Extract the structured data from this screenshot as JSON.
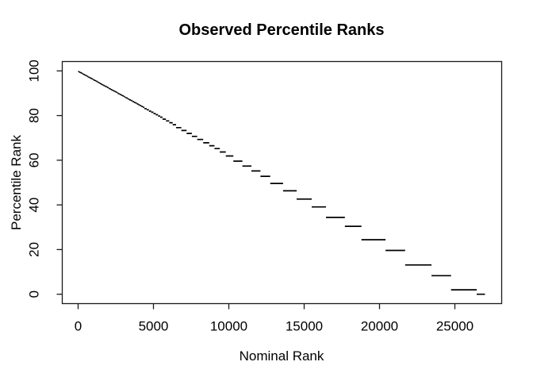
{
  "figure": {
    "title": "Observed Percentile Ranks",
    "xlabel": "Nominal Rank",
    "ylabel": "Percentile Rank"
  },
  "colors": {
    "line": "#000000",
    "box": "#1a1a1a",
    "text": "#000000",
    "background": "#ffffff"
  },
  "chart_data": {
    "type": "step",
    "title": "Observed Percentile Ranks",
    "xlabel": "Nominal Rank",
    "ylabel": "Percentile Rank",
    "x_ticks": [
      0,
      5000,
      10000,
      15000,
      20000,
      25000
    ],
    "y_ticks": [
      0,
      20,
      40,
      60,
      80,
      100
    ],
    "xlim": [
      -1052,
      28106
    ],
    "ylim": [
      -4.2,
      104.2
    ],
    "grid": false,
    "legend": null,
    "n_items": 27000,
    "segments": [
      [
        0,
        75,
        99.7
      ],
      [
        75,
        150,
        99.4
      ],
      [
        150,
        225,
        99.2
      ],
      [
        225,
        300,
        98.9
      ],
      [
        300,
        375,
        98.6
      ],
      [
        375,
        450,
        98.3
      ],
      [
        450,
        525,
        98.1
      ],
      [
        525,
        600,
        97.8
      ],
      [
        600,
        675,
        97.5
      ],
      [
        675,
        750,
        97.2
      ],
      [
        750,
        825,
        96.9
      ],
      [
        825,
        900,
        96.7
      ],
      [
        900,
        975,
        96.4
      ],
      [
        975,
        1050,
        96.1
      ],
      [
        1050,
        1125,
        95.8
      ],
      [
        1125,
        1200,
        95.6
      ],
      [
        1200,
        1275,
        95.3
      ],
      [
        1275,
        1350,
        95.0
      ],
      [
        1350,
        1425,
        94.7
      ],
      [
        1425,
        1500,
        94.4
      ],
      [
        1500,
        1585,
        94.1
      ],
      [
        1585,
        1670,
        93.8
      ],
      [
        1670,
        1755,
        93.5
      ],
      [
        1755,
        1840,
        93.2
      ],
      [
        1840,
        1925,
        92.9
      ],
      [
        1925,
        2010,
        92.6
      ],
      [
        2010,
        2095,
        92.2
      ],
      [
        2095,
        2180,
        91.9
      ],
      [
        2180,
        2265,
        91.6
      ],
      [
        2265,
        2350,
        91.3
      ],
      [
        2350,
        2435,
        91.0
      ],
      [
        2435,
        2520,
        90.7
      ],
      [
        2520,
        2605,
        90.4
      ],
      [
        2605,
        2690,
        90.0
      ],
      [
        2690,
        2775,
        89.7
      ],
      [
        2775,
        2860,
        89.4
      ],
      [
        2860,
        2945,
        89.1
      ],
      [
        2945,
        3030,
        88.8
      ],
      [
        3030,
        3115,
        88.5
      ],
      [
        3115,
        3200,
        88.1
      ],
      [
        3200,
        3300,
        87.8
      ],
      [
        3300,
        3400,
        87.4
      ],
      [
        3400,
        3500,
        87.0
      ],
      [
        3500,
        3600,
        86.7
      ],
      [
        3600,
        3700,
        86.3
      ],
      [
        3700,
        3800,
        85.9
      ],
      [
        3800,
        3900,
        85.6
      ],
      [
        3900,
        4000,
        85.2
      ],
      [
        4000,
        4100,
        84.8
      ],
      [
        4100,
        4200,
        84.4
      ],
      [
        4200,
        4300,
        84.1
      ],
      [
        4300,
        4400,
        83.7
      ],
      [
        4400,
        4550,
        83.1
      ],
      [
        4550,
        4700,
        82.6
      ],
      [
        4700,
        4850,
        82.0
      ],
      [
        4850,
        5000,
        81.5
      ],
      [
        5000,
        5150,
        80.9
      ],
      [
        5150,
        5300,
        80.4
      ],
      [
        5300,
        5450,
        79.8
      ],
      [
        5450,
        5600,
        79.3
      ],
      [
        5600,
        5825,
        78.4
      ],
      [
        5825,
        6050,
        77.6
      ],
      [
        6050,
        6275,
        76.8
      ],
      [
        6275,
        6500,
        75.9
      ],
      [
        6500,
        6850,
        74.6
      ],
      [
        6850,
        7200,
        73.3
      ],
      [
        7200,
        7550,
        72.0
      ],
      [
        7550,
        7900,
        70.7
      ],
      [
        7900,
        8300,
        69.3
      ],
      [
        8300,
        8700,
        67.8
      ],
      [
        8700,
        9050,
        66.5
      ],
      [
        9050,
        9400,
        65.2
      ],
      [
        9400,
        9800,
        63.7
      ],
      [
        9800,
        10300,
        61.9
      ],
      [
        10300,
        10900,
        59.6
      ],
      [
        10900,
        11500,
        57.4
      ],
      [
        11500,
        12100,
        55.2
      ],
      [
        12100,
        12750,
        52.8
      ],
      [
        12750,
        13600,
        49.6
      ],
      [
        13600,
        14500,
        46.3
      ],
      [
        14500,
        15500,
        42.6
      ],
      [
        15500,
        16450,
        39.1
      ],
      [
        16450,
        17700,
        34.4
      ],
      [
        17700,
        18800,
        30.4
      ],
      [
        18800,
        20400,
        24.4
      ],
      [
        20400,
        21700,
        19.6
      ],
      [
        21700,
        23450,
        13.1
      ],
      [
        23450,
        24750,
        8.3
      ],
      [
        24750,
        26450,
        2.0
      ],
      [
        26450,
        27000,
        0.0
      ]
    ]
  }
}
